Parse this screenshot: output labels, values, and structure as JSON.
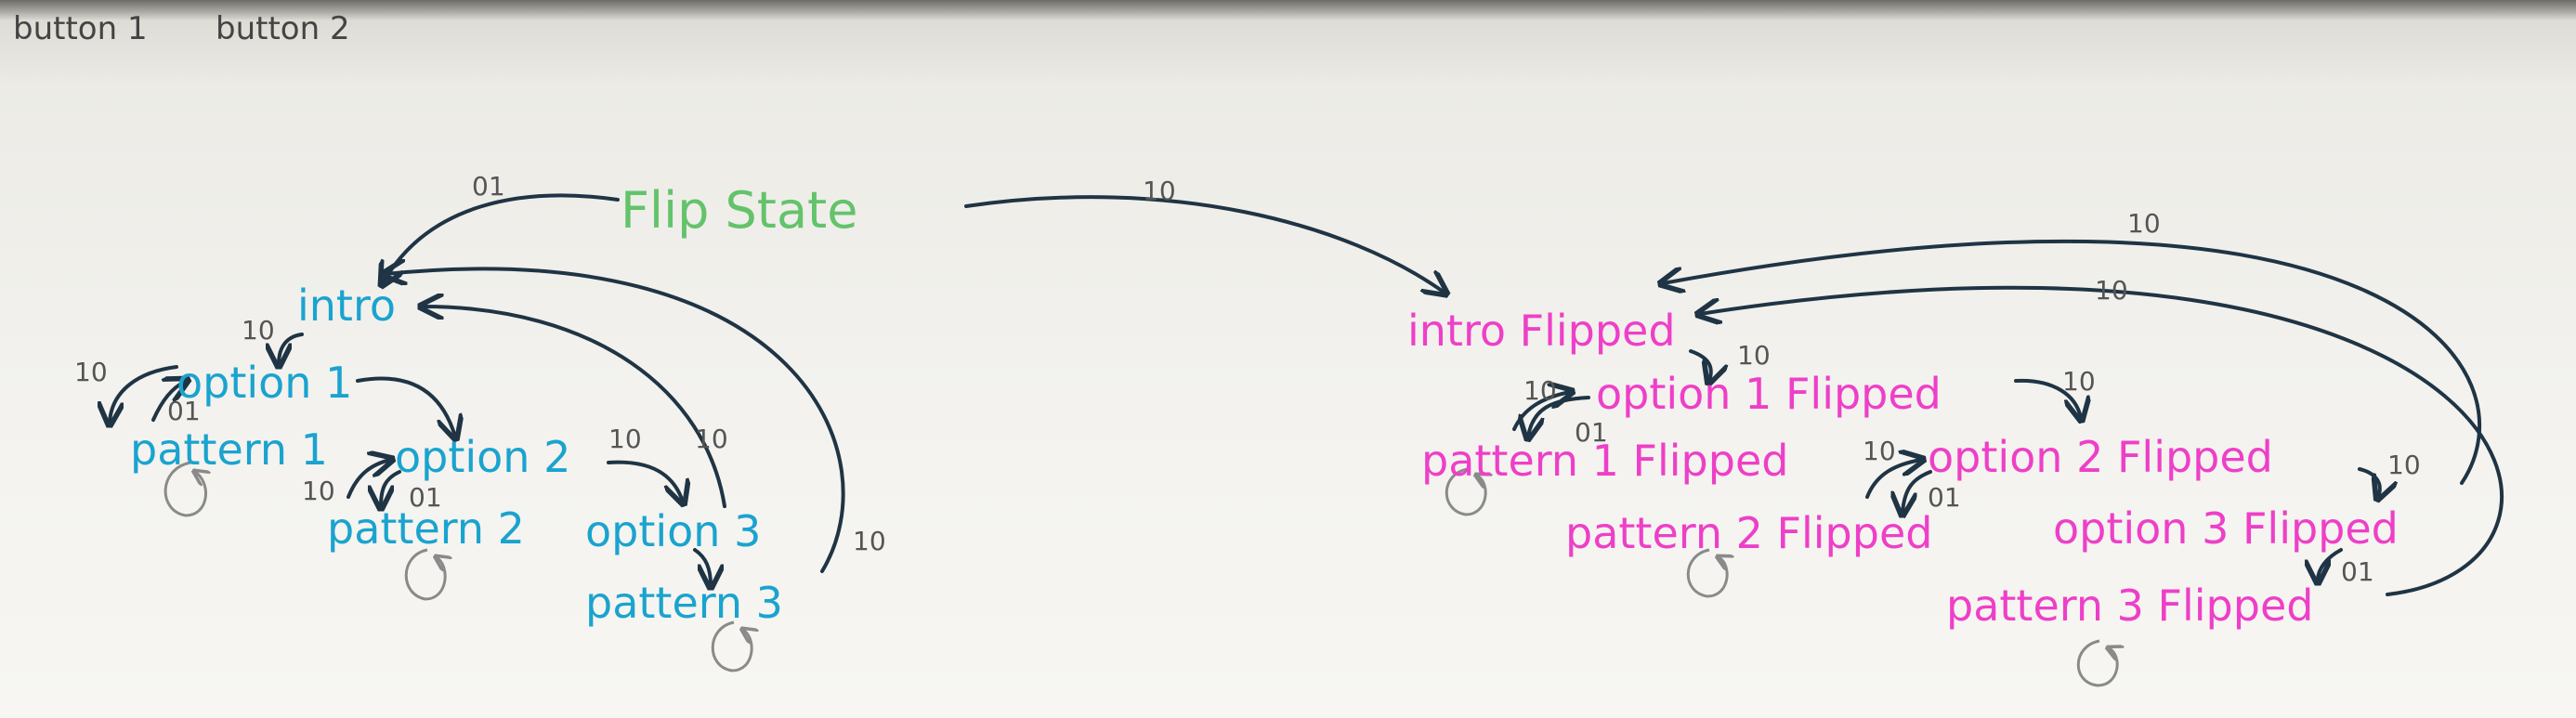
{
  "header": {
    "buttons": [
      "button 1",
      "button 2"
    ]
  },
  "colors": {
    "ink": "#1f3444",
    "normal": "#1aa3cf",
    "flipped": "#ee3fc8",
    "flip": "#63c36b",
    "faint": "#8a8a8a",
    "edge_label": "#555555"
  },
  "nodes": {
    "flip_state": "Flip State",
    "intro": "intro",
    "option1": "option 1",
    "pattern1": "pattern 1",
    "option2": "option 2",
    "pattern2": "pattern 2",
    "option3": "option 3",
    "pattern3": "pattern 3",
    "intro_f": "intro Flipped",
    "option1_f": "option 1 Flipped",
    "pattern1_f": "pattern 1 Flipped",
    "option2_f": "option 2 Flipped",
    "pattern2_f": "pattern 2 Flipped",
    "option3_f": "option 3 Flipped",
    "pattern3_f": "pattern 3 Flipped"
  },
  "labels": {
    "l01_flip": "01",
    "l10_flip": "10",
    "l10_intro": "10",
    "l10_opt1_left": "10",
    "l01_opt1": "01",
    "l10_opt1_opt2": "10",
    "l10_opt2_left": "10",
    "l01_opt2": "01",
    "l10_opt2_opt3": "10",
    "l10_opt3_back": "10",
    "l10_pat3_back": "10",
    "l10_intro_f": "10",
    "l10_opt1f_left": "10",
    "l01_opt1f": "01",
    "l10_opt1f_opt2f": "10",
    "l10_opt2f_left": "10",
    "l01_opt2f": "01",
    "l10_opt2f_opt3f": "10",
    "l01_opt3f": "01",
    "l10_f_back1": "10",
    "l10_f_back2": "10"
  }
}
